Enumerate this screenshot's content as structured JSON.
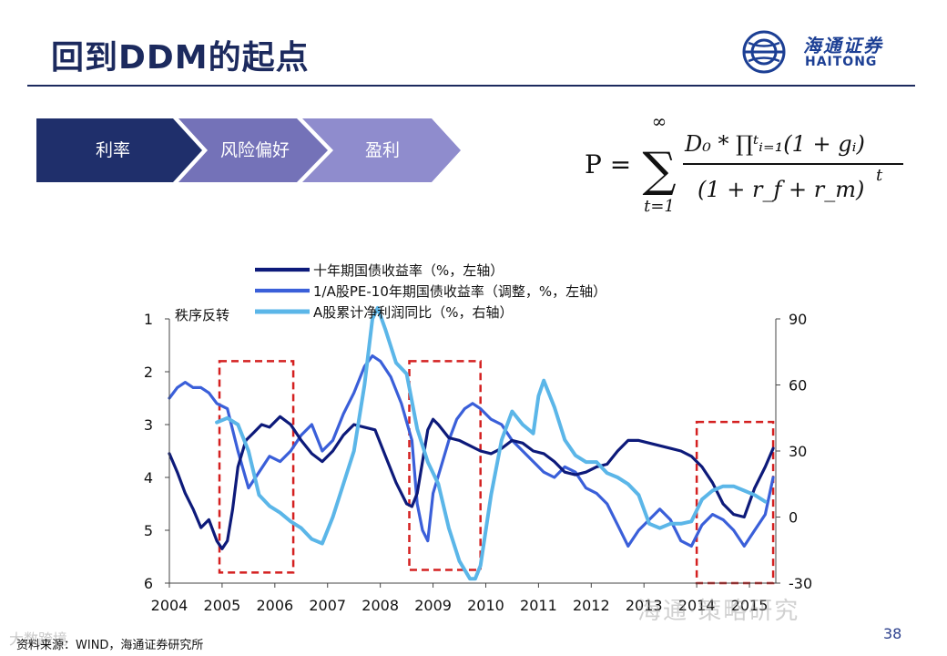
{
  "slide": {
    "title": "回到DDM的起点",
    "page_number": "38",
    "source": "资料来源：WIND，海通证券研究所"
  },
  "logo": {
    "cn": "海通证券",
    "en": "HAITONG",
    "color": "#1c3f94"
  },
  "chevrons": [
    "利率",
    "风险偏好",
    "盈利"
  ],
  "formula": {
    "lhs": "P =",
    "sum_top": "∞",
    "sum_bottom": "t=1",
    "numerator": "D₀ * ∏ᵗᵢ₌₁(1 + gᵢ)",
    "denominator": "(1 + r_f + r_m)",
    "exponent": "t"
  },
  "watermarks": {
    "wechat": "海通·策略研究",
    "site": "大数跨境"
  },
  "colors": {
    "navy": "#1c2a5e",
    "dark_line": "#0d1a7a",
    "mid_line": "#3a5fd9",
    "light_line": "#5bb6e8",
    "box": "#d42020",
    "chev1": "#1f2f6b",
    "chev2": "#7472b8",
    "chev3": "#8f8ccd"
  },
  "chart_data": {
    "type": "line",
    "legend": [
      "十年期国债收益率（%，左轴）",
      "1/A股PE-10年期国债收益率（调整，%，左轴）",
      "A股累计净利润同比（%，右轴）"
    ],
    "annotation": "秩序反转",
    "x_ticks": [
      "2004",
      "2005",
      "2006",
      "2007",
      "2008",
      "2009",
      "2010",
      "2011",
      "2012",
      "2013",
      "2014",
      "2015"
    ],
    "xlim": [
      2004,
      2015.5
    ],
    "left_axis": {
      "ticks": [
        "1",
        "2",
        "3",
        "4",
        "5",
        "6"
      ],
      "range": [
        1,
        6
      ],
      "inverted": true
    },
    "right_axis": {
      "ticks": [
        "90",
        "60",
        "30",
        "0",
        "-30"
      ],
      "range": [
        -30,
        90
      ]
    },
    "highlight_periods": [
      {
        "x0": 2004.95,
        "x1": 2006.35,
        "y0": 1.8,
        "y1": 5.8
      },
      {
        "x0": 2008.55,
        "x1": 2009.9,
        "y0": 1.8,
        "y1": 5.75
      },
      {
        "x0": 2014.0,
        "x1": 2015.45,
        "y0": 2.95,
        "y1": 6.0
      }
    ],
    "series": [
      {
        "name": "十年期国债收益率（%，左轴）",
        "axis": "left",
        "x": [
          2004.0,
          2004.15,
          2004.3,
          2004.45,
          2004.6,
          2004.75,
          2004.9,
          2005.0,
          2005.1,
          2005.2,
          2005.3,
          2005.45,
          2005.6,
          2005.75,
          2005.9,
          2006.1,
          2006.3,
          2006.5,
          2006.7,
          2006.9,
          2007.1,
          2007.3,
          2007.5,
          2007.7,
          2007.9,
          2008.1,
          2008.3,
          2008.5,
          2008.6,
          2008.7,
          2008.8,
          2008.9,
          2009.0,
          2009.1,
          2009.3,
          2009.5,
          2009.7,
          2009.9,
          2010.1,
          2010.3,
          2010.5,
          2010.7,
          2010.9,
          2011.1,
          2011.3,
          2011.5,
          2011.7,
          2011.9,
          2012.1,
          2012.3,
          2012.5,
          2012.7,
          2012.9,
          2013.1,
          2013.3,
          2013.5,
          2013.7,
          2013.9,
          2014.1,
          2014.3,
          2014.5,
          2014.7,
          2014.9,
          2015.1,
          2015.3,
          2015.45
        ],
        "y": [
          3.55,
          3.9,
          4.3,
          4.6,
          4.95,
          4.8,
          5.2,
          5.35,
          5.2,
          4.6,
          3.8,
          3.3,
          3.15,
          3.0,
          3.05,
          2.85,
          3.0,
          3.3,
          3.55,
          3.7,
          3.5,
          3.2,
          3.0,
          3.05,
          3.1,
          3.6,
          4.1,
          4.5,
          4.55,
          4.3,
          3.7,
          3.1,
          2.9,
          3.0,
          3.25,
          3.3,
          3.4,
          3.5,
          3.55,
          3.45,
          3.3,
          3.35,
          3.5,
          3.55,
          3.7,
          3.9,
          3.95,
          3.9,
          3.8,
          3.75,
          3.5,
          3.3,
          3.3,
          3.35,
          3.4,
          3.45,
          3.5,
          3.6,
          3.8,
          4.1,
          4.5,
          4.7,
          4.75,
          4.2,
          3.8,
          3.45
        ]
      },
      {
        "name": "1/A股PE-10年期国债收益率（调整，%，左轴）",
        "axis": "left",
        "x": [
          2004.0,
          2004.15,
          2004.3,
          2004.45,
          2004.6,
          2004.75,
          2004.9,
          2005.1,
          2005.3,
          2005.5,
          2005.7,
          2005.9,
          2006.1,
          2006.3,
          2006.5,
          2006.7,
          2006.9,
          2007.1,
          2007.3,
          2007.5,
          2007.7,
          2007.85,
          2008.0,
          2008.2,
          2008.4,
          2008.6,
          2008.7,
          2008.8,
          2008.9,
          2009.0,
          2009.15,
          2009.3,
          2009.45,
          2009.6,
          2009.75,
          2009.9,
          2010.1,
          2010.3,
          2010.5,
          2010.7,
          2010.9,
          2011.1,
          2011.3,
          2011.5,
          2011.7,
          2011.9,
          2012.1,
          2012.3,
          2012.5,
          2012.7,
          2012.9,
          2013.1,
          2013.3,
          2013.5,
          2013.7,
          2013.9,
          2014.1,
          2014.3,
          2014.5,
          2014.7,
          2014.9,
          2015.1,
          2015.3,
          2015.45
        ],
        "y": [
          2.5,
          2.3,
          2.2,
          2.3,
          2.3,
          2.4,
          2.6,
          2.7,
          3.5,
          4.2,
          3.9,
          3.6,
          3.7,
          3.5,
          3.2,
          3.0,
          3.5,
          3.3,
          2.8,
          2.4,
          1.9,
          1.7,
          1.8,
          2.1,
          2.6,
          3.3,
          4.5,
          5.0,
          5.2,
          4.3,
          3.8,
          3.3,
          2.9,
          2.7,
          2.6,
          2.7,
          2.9,
          3.0,
          3.3,
          3.5,
          3.7,
          3.9,
          4.0,
          3.8,
          3.9,
          4.2,
          4.3,
          4.5,
          4.9,
          5.3,
          5.0,
          4.8,
          4.6,
          4.8,
          5.2,
          5.3,
          4.9,
          4.7,
          4.8,
          5.0,
          5.3,
          5.0,
          4.7,
          4.0
        ]
      },
      {
        "name": "A股累计净利润同比（%，右轴）",
        "axis": "right",
        "x": [
          2004.9,
          2005.1,
          2005.3,
          2005.5,
          2005.7,
          2005.9,
          2006.1,
          2006.3,
          2006.5,
          2006.7,
          2006.9,
          2007.1,
          2007.3,
          2007.5,
          2007.7,
          2007.85,
          2007.95,
          2008.1,
          2008.3,
          2008.5,
          2008.7,
          2008.9,
          2009.1,
          2009.3,
          2009.5,
          2009.7,
          2009.8,
          2009.9,
          2010.1,
          2010.3,
          2010.5,
          2010.7,
          2010.9,
          2011.0,
          2011.1,
          2011.3,
          2011.5,
          2011.7,
          2011.9,
          2012.1,
          2012.3,
          2012.5,
          2012.7,
          2012.9,
          2013.1,
          2013.3,
          2013.5,
          2013.7,
          2013.9,
          2014.1,
          2014.3,
          2014.5,
          2014.7,
          2014.9,
          2015.1,
          2015.3
        ],
        "y": [
          43,
          45,
          42,
          30,
          10,
          5,
          2,
          -2,
          -5,
          -10,
          -12,
          0,
          15,
          30,
          60,
          90,
          95,
          85,
          70,
          65,
          40,
          25,
          15,
          -5,
          -20,
          -28,
          -28,
          -22,
          10,
          35,
          48,
          42,
          38,
          55,
          62,
          50,
          35,
          28,
          25,
          25,
          20,
          18,
          15,
          10,
          -3,
          -5,
          -3,
          -3,
          -2,
          8,
          12,
          14,
          14,
          12,
          10,
          7
        ]
      }
    ]
  }
}
